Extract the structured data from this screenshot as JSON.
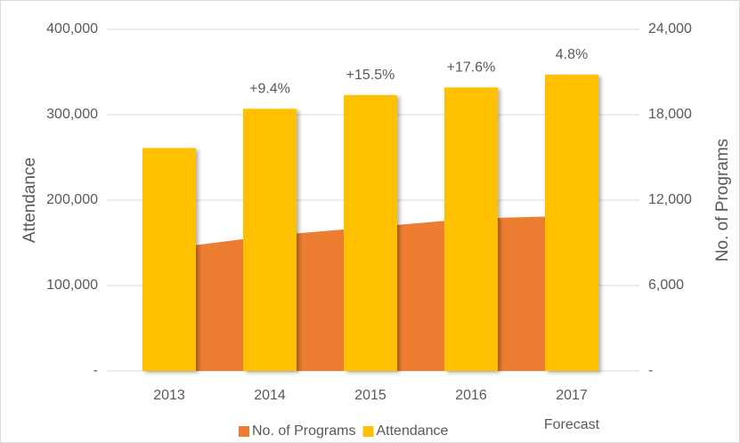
{
  "chart_data": {
    "type": "bar",
    "categories": [
      "2013",
      "2014",
      "2015",
      "2016",
      "2017"
    ],
    "forecast_label": "Forecast",
    "series": [
      {
        "name": "No. of Programs",
        "type": "area",
        "axis": "y2",
        "color": "#ED7D31",
        "values": [
          8600,
          9500,
          10100,
          10700,
          10900
        ]
      },
      {
        "name": "Attendance",
        "type": "bar",
        "color": "#FFC000",
        "values": [
          261000,
          307000,
          323000,
          332000,
          347000
        ]
      }
    ],
    "annotations": [
      null,
      "+9.4%",
      "+15.5%",
      "+17.6%",
      "4.8%"
    ],
    "y_label": "Attendance",
    "y2_label": "No. of Programs",
    "ylim": [
      0,
      400000
    ],
    "yticks": [
      {
        "value": 0,
        "label": "-"
      },
      {
        "value": 100000,
        "label": "100,000"
      },
      {
        "value": 200000,
        "label": "200,000"
      },
      {
        "value": 300000,
        "label": "300,000"
      },
      {
        "value": 400000,
        "label": "400,000"
      }
    ],
    "y2lim": [
      0,
      24000
    ],
    "y2ticks": [
      {
        "value": 0,
        "label": "-"
      },
      {
        "value": 6000,
        "label": "6,000"
      },
      {
        "value": 12000,
        "label": "12,000"
      },
      {
        "value": 18000,
        "label": "18,000"
      },
      {
        "value": 24000,
        "label": "24,000"
      }
    ],
    "grid": true,
    "legend": "bottom"
  }
}
